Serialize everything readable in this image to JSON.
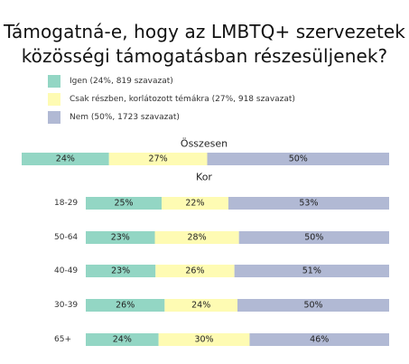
{
  "title_line1": "Támogatná-e, hogy az LMBTQ+ szervezetek",
  "title_line2": "közösségi támogatásban részesüljenek?",
  "legend": [
    {
      "label": "Igen (24%, 819 szavazat)",
      "color": "#93d6c4"
    },
    {
      "label": "Csak részben, korlátozott témákra (27%, 918 szavazat)",
      "color": "#fefbb3"
    },
    {
      "label": "Nem (50%, 1723 szavazat)",
      "color": "#b1b9d4"
    }
  ],
  "chart_data": {
    "type": "bar",
    "orientation": "horizontal",
    "stacked": true,
    "series_names": [
      "Igen",
      "Csak részben, korlátozott témákra",
      "Nem"
    ],
    "colors": [
      "#93d6c4",
      "#fefbb3",
      "#b1b9d4"
    ],
    "groups": [
      {
        "heading": "Összesen",
        "rows": [
          {
            "label": "",
            "values": [
              24,
              27,
              50
            ]
          }
        ]
      },
      {
        "heading": "Kor",
        "rows": [
          {
            "label": "18-29",
            "values": [
              25,
              22,
              53
            ]
          },
          {
            "label": "50-64",
            "values": [
              23,
              28,
              50
            ]
          },
          {
            "label": "40-49",
            "values": [
              23,
              26,
              51
            ]
          },
          {
            "label": "30-39",
            "values": [
              26,
              24,
              50
            ]
          },
          {
            "label": "65+",
            "values": [
              24,
              30,
              46
            ]
          }
        ]
      }
    ]
  }
}
